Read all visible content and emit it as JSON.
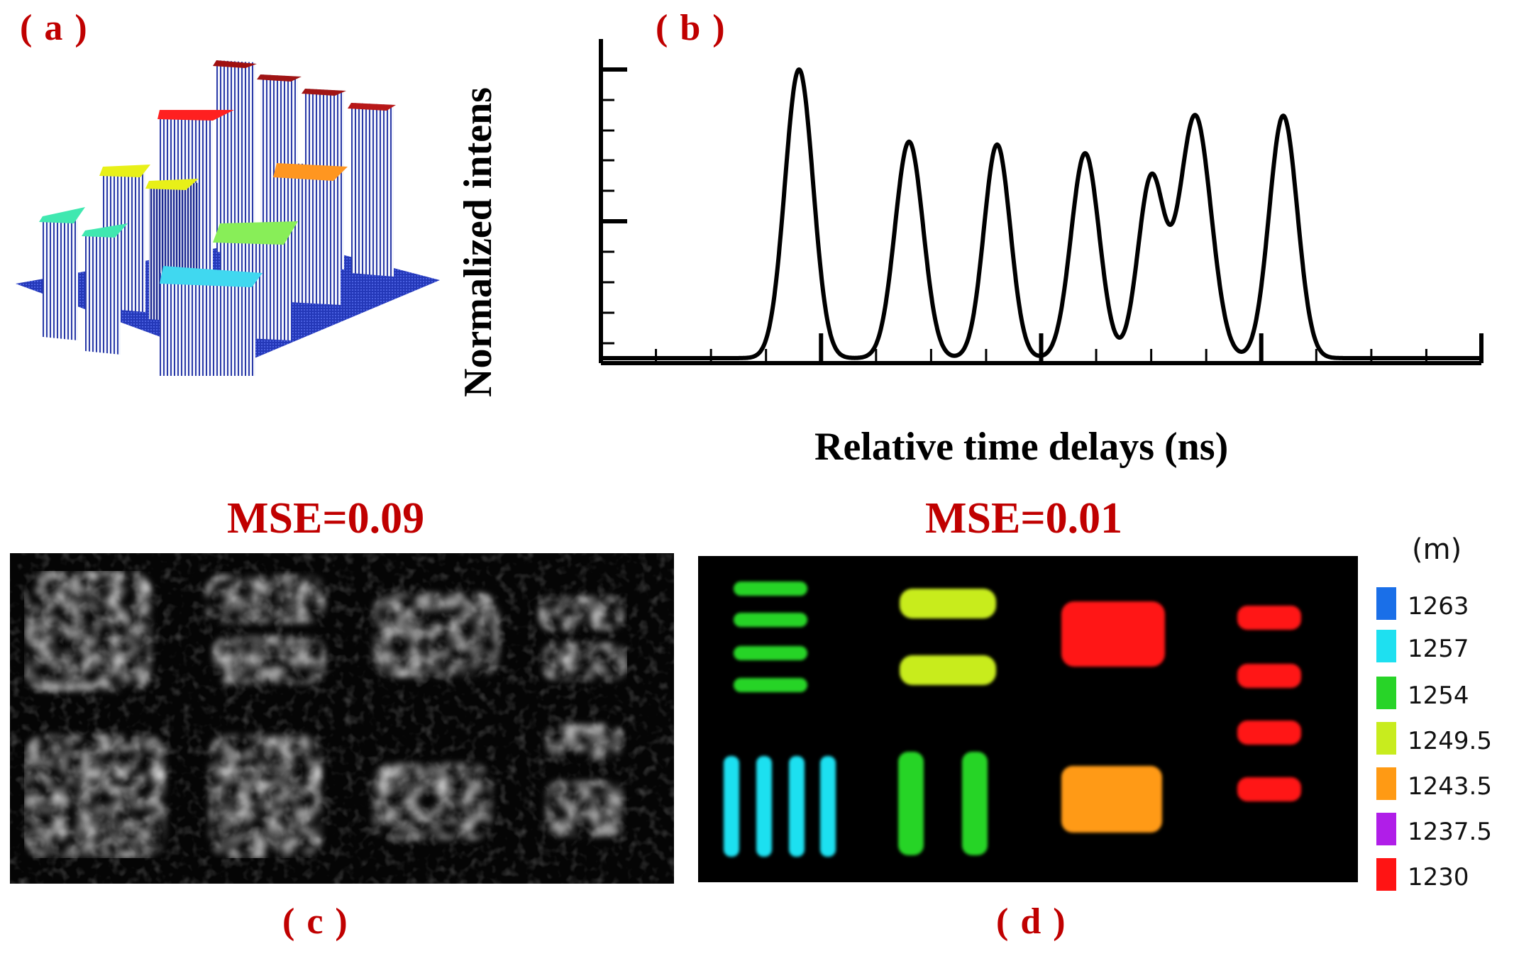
{
  "panels": {
    "a": {
      "label": "( a )"
    },
    "b": {
      "label": "( b )"
    },
    "c": {
      "label": "( c )",
      "mse": "MSE=0.09"
    },
    "d": {
      "label": "( d )",
      "mse": "MSE=0.01"
    }
  },
  "chart_data": {
    "type": "line",
    "xlabel": "Relative time delays (ns)",
    "ylabel": "Normalized intens",
    "grid": false,
    "peaks": [
      {
        "center": 0.225,
        "height": 1.0,
        "width": 0.016
      },
      {
        "center": 0.35,
        "height": 0.75,
        "width": 0.016
      },
      {
        "center": 0.45,
        "height": 0.74,
        "width": 0.015
      },
      {
        "center": 0.55,
        "height": 0.71,
        "width": 0.016
      },
      {
        "center": 0.625,
        "height": 0.62,
        "width": 0.015
      },
      {
        "center": 0.675,
        "height": 0.84,
        "width": 0.018
      },
      {
        "center": 0.775,
        "height": 0.84,
        "width": 0.016
      }
    ]
  },
  "colorbar": {
    "unit": "(m)",
    "entries": [
      {
        "value": "1263",
        "color": "#1a6fe8"
      },
      {
        "value": "1257",
        "color": "#1ee0f0"
      },
      {
        "value": "1254",
        "color": "#28d428"
      },
      {
        "value": "1249.5",
        "color": "#c8ec1e"
      },
      {
        "value": "1243.5",
        "color": "#ff9a14"
      },
      {
        "value": "1237.5",
        "color": "#b01ee8"
      },
      {
        "value": "1230",
        "color": "#ff1414"
      }
    ]
  }
}
